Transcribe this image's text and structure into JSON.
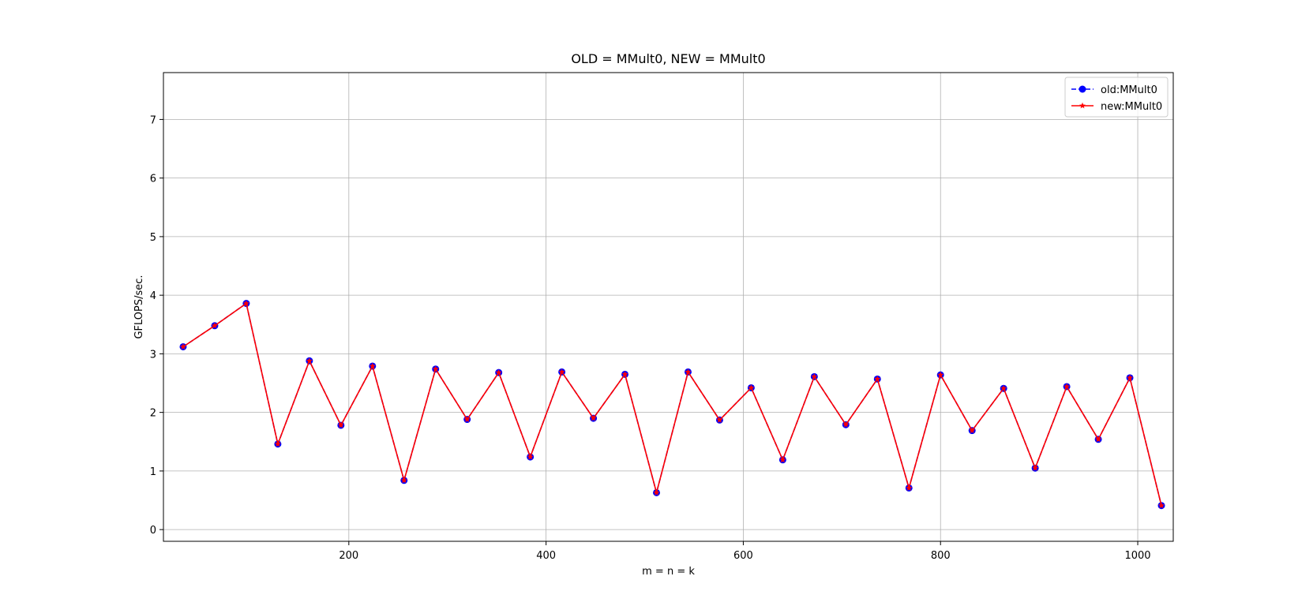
{
  "chart_data": {
    "type": "line",
    "title": "OLD = MMult0, NEW = MMult0",
    "xlabel": "m = n = k",
    "ylabel": "GFLOPS/sec.",
    "xlim": [
      12,
      1036
    ],
    "ylim": [
      -0.2,
      7.8
    ],
    "xticks": [
      200,
      400,
      600,
      800,
      1000
    ],
    "yticks": [
      0,
      1,
      2,
      3,
      4,
      5,
      6,
      7
    ],
    "grid": true,
    "legend_position": "top-right",
    "x": [
      32,
      64,
      96,
      128,
      160,
      192,
      224,
      256,
      288,
      320,
      352,
      384,
      416,
      448,
      480,
      512,
      544,
      576,
      608,
      640,
      672,
      704,
      736,
      768,
      800,
      832,
      864,
      896,
      928,
      960,
      992,
      1024
    ],
    "series": [
      {
        "name": "old:MMult0",
        "color": "#0000ff",
        "marker": "circle",
        "linestyle": "dashed",
        "values": [
          3.12,
          3.48,
          3.86,
          1.46,
          2.88,
          1.78,
          2.79,
          0.84,
          2.74,
          1.88,
          2.68,
          1.24,
          2.69,
          1.9,
          2.65,
          0.63,
          2.69,
          1.87,
          2.42,
          1.19,
          2.61,
          1.79,
          2.57,
          0.71,
          2.64,
          1.69,
          2.41,
          1.05,
          2.44,
          1.54,
          2.59,
          0.41
        ]
      },
      {
        "name": "new:MMult0",
        "color": "#ff0000",
        "marker": "star",
        "linestyle": "solid",
        "values": [
          3.12,
          3.48,
          3.86,
          1.46,
          2.88,
          1.78,
          2.79,
          0.84,
          2.74,
          1.88,
          2.68,
          1.24,
          2.69,
          1.9,
          2.65,
          0.63,
          2.69,
          1.87,
          2.42,
          1.19,
          2.61,
          1.79,
          2.57,
          0.71,
          2.64,
          1.69,
          2.41,
          1.05,
          2.44,
          1.54,
          2.59,
          0.41
        ]
      }
    ]
  }
}
